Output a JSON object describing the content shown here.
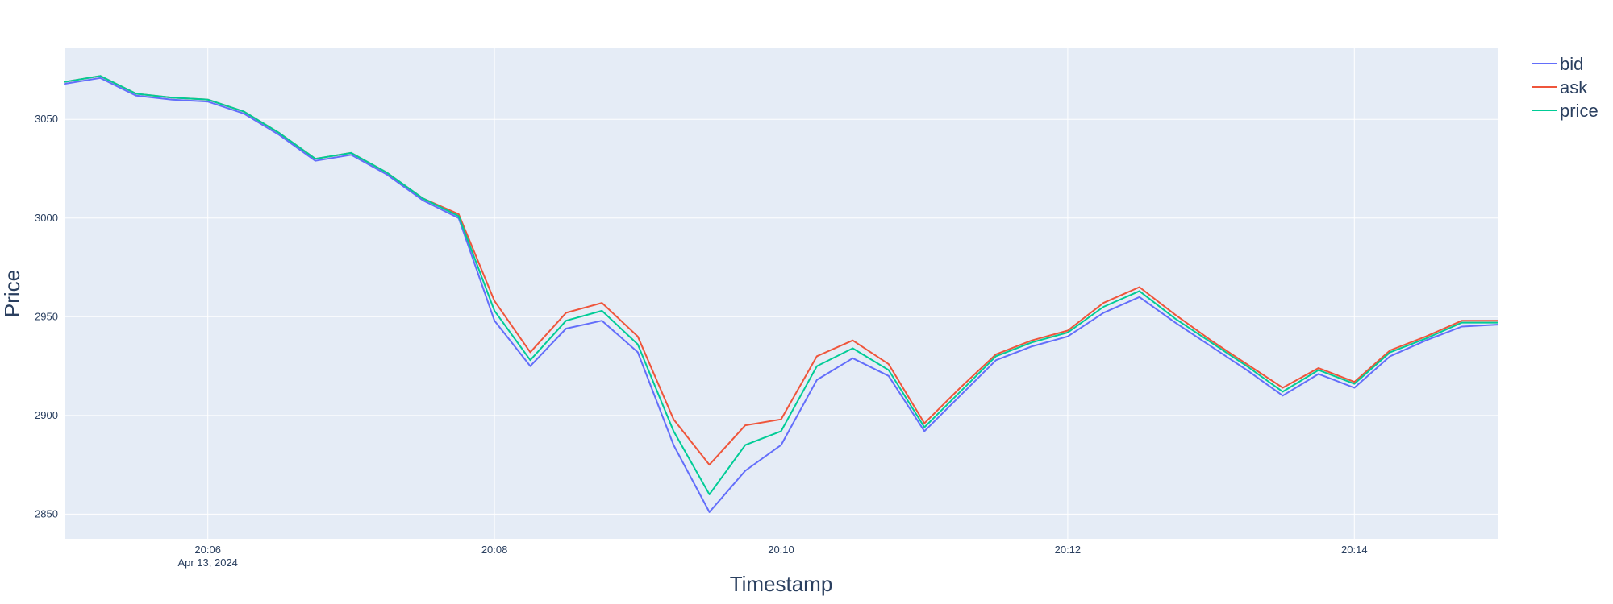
{
  "chart_data": {
    "type": "line",
    "title": "",
    "xlabel": "Timestamp",
    "ylabel": "Price",
    "x_range": [
      "20:05:00",
      "20:15:00"
    ],
    "ylim": [
      2837.5,
      3086
    ],
    "grid": true,
    "legend_position": "top-right",
    "x_ticks": [
      {
        "time": "20:06",
        "label": "20:06",
        "sublabel": "Apr 13, 2024"
      },
      {
        "time": "20:08",
        "label": "20:08",
        "sublabel": ""
      },
      {
        "time": "20:10",
        "label": "20:10",
        "sublabel": ""
      },
      {
        "time": "20:12",
        "label": "20:12",
        "sublabel": ""
      },
      {
        "time": "20:14",
        "label": "20:14",
        "sublabel": ""
      }
    ],
    "y_ticks": [
      2850,
      2900,
      2950,
      3000,
      3050
    ],
    "x": [
      "20:05:00",
      "20:05:15",
      "20:05:30",
      "20:05:45",
      "20:06:00",
      "20:06:15",
      "20:06:30",
      "20:06:45",
      "20:07:00",
      "20:07:15",
      "20:07:30",
      "20:07:45",
      "20:08:00",
      "20:08:15",
      "20:08:30",
      "20:08:45",
      "20:09:00",
      "20:09:15",
      "20:09:30",
      "20:09:45",
      "20:10:00",
      "20:10:15",
      "20:10:30",
      "20:10:45",
      "20:11:00",
      "20:11:15",
      "20:11:30",
      "20:11:45",
      "20:12:00",
      "20:12:15",
      "20:12:30",
      "20:12:45",
      "20:13:00",
      "20:13:15",
      "20:13:30",
      "20:13:45",
      "20:14:00",
      "20:14:15",
      "20:14:30",
      "20:14:45",
      "20:15:00"
    ],
    "series": [
      {
        "name": "bid",
        "color": "#636efa",
        "values": [
          3068,
          3071,
          3062,
          3060,
          3059,
          3053,
          3042,
          3029,
          3032,
          3022,
          3009,
          3000,
          2948,
          2925,
          2944,
          2948,
          2932,
          2885,
          2851,
          2872,
          2885,
          2918,
          2929,
          2920,
          2892,
          2910,
          2928,
          2935,
          2940,
          2952,
          2960,
          2947,
          2935,
          2923,
          2910,
          2921,
          2914,
          2930,
          2938,
          2945,
          2946
        ]
      },
      {
        "name": "ask",
        "color": "#ef553b",
        "values": [
          3069,
          3072,
          3063,
          3061,
          3060,
          3054,
          3043,
          3030,
          3033,
          3023,
          3010,
          3002,
          2958,
          2932,
          2952,
          2957,
          2940,
          2898,
          2875,
          2895,
          2898,
          2930,
          2938,
          2926,
          2896,
          2914,
          2931,
          2938,
          2943,
          2957,
          2965,
          2951,
          2938,
          2926,
          2914,
          2924,
          2917,
          2933,
          2940,
          2948,
          2948
        ]
      },
      {
        "name": "price",
        "color": "#00cc96",
        "values": [
          3069,
          3072,
          3063,
          3061,
          3060,
          3054,
          3043,
          3030,
          3033,
          3023,
          3010,
          3001,
          2953,
          2928,
          2948,
          2953,
          2936,
          2892,
          2860,
          2885,
          2892,
          2925,
          2934,
          2923,
          2894,
          2912,
          2930,
          2937,
          2942,
          2955,
          2963,
          2949,
          2937,
          2925,
          2912,
          2923,
          2916,
          2932,
          2939,
          2947,
          2947
        ]
      }
    ]
  }
}
